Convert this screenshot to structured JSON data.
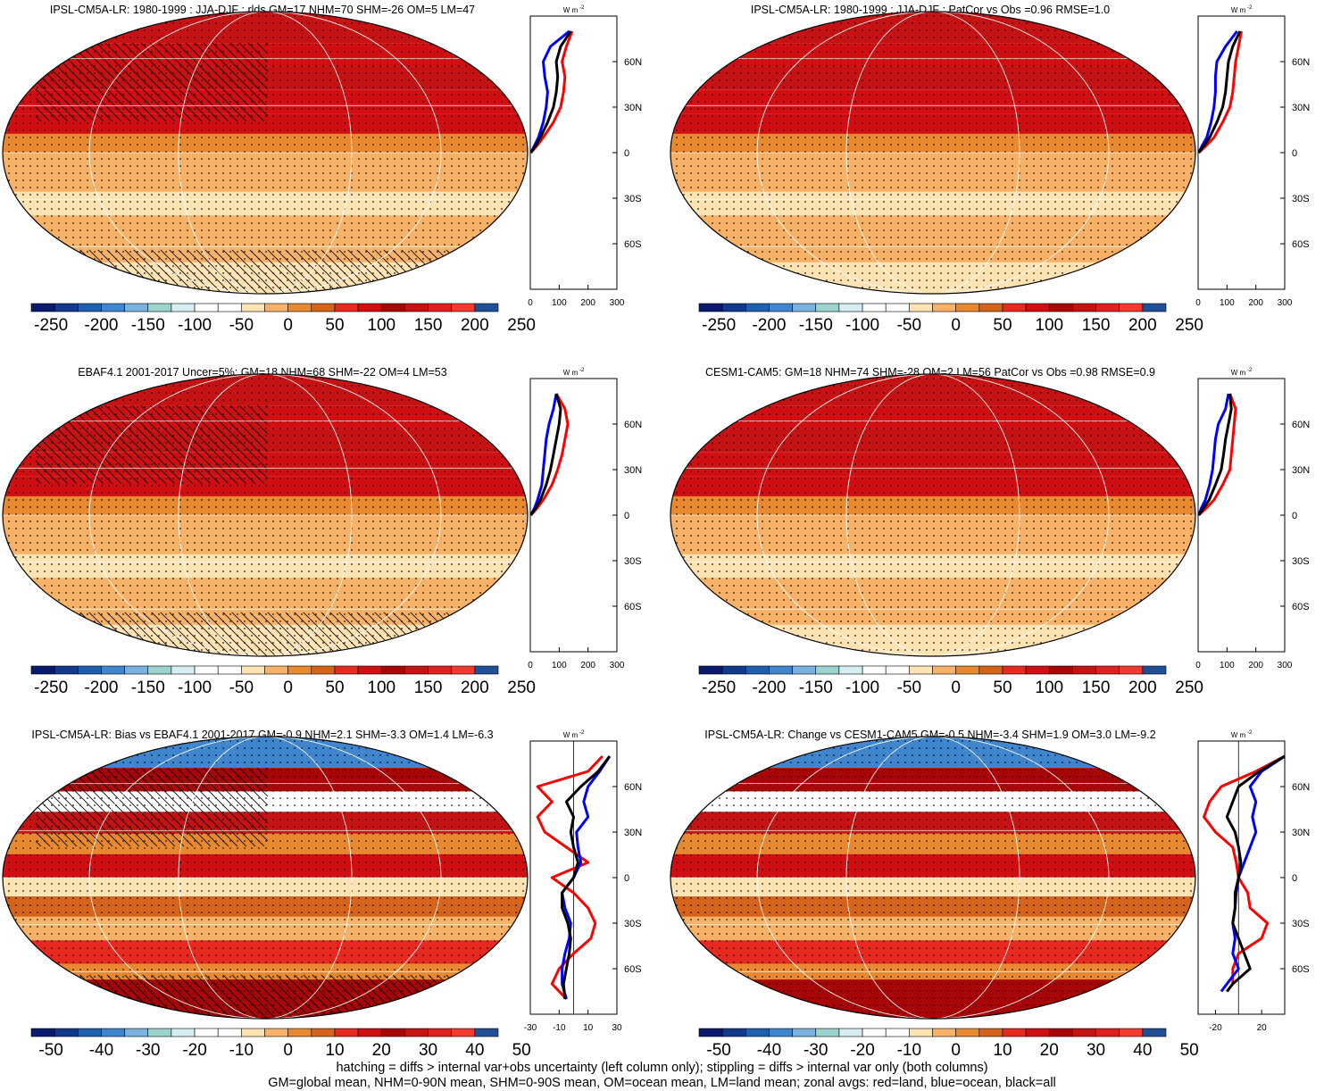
{
  "palette": {
    "map_colors": [
      "#0a1a6e",
      "#123a8c",
      "#1f5fb0",
      "#3f86cf",
      "#79b1df",
      "#9dd3cf",
      "#d6eef2",
      "#ffffff",
      "#ffffff",
      "#ffe3b3",
      "#f7b267",
      "#e8892f",
      "#d5641a",
      "#e8291f",
      "#d10f12",
      "#a80606",
      "#c61212",
      "#e0201e",
      "#f43a2e",
      "#1f4f94"
    ],
    "land": "#ff0000",
    "ocean": "#0000ff",
    "all": "#000000"
  },
  "chart_data": [
    {
      "type": "heatmap",
      "title": "IPSL-CM5A-LR: 1980-1999 : JJA-DJF : rlds GM=17 NHM=70 SHM=-26 OM=5 LM=47",
      "colorbar_labels": [
        "-250",
        "-200",
        "-150",
        "-100",
        "-50",
        "0",
        "50",
        "100",
        "150",
        "200",
        "250"
      ],
      "colorbar_range": [
        -250,
        250
      ],
      "hatching": true,
      "zonal": {
        "unit_label": "W m",
        "unit_exp": "-2",
        "xticks": [
          "0",
          "100",
          "200",
          "300"
        ],
        "xlim": [
          0,
          300
        ],
        "latlabels": [
          "60N",
          "30N",
          "0",
          "30S",
          "60S"
        ],
        "lat": [
          0,
          5,
          10,
          20,
          30,
          40,
          50,
          60,
          70,
          80
        ],
        "land": [
          2,
          25,
          45,
          80,
          105,
          115,
          120,
          110,
          125,
          145
        ],
        "ocean": [
          2,
          15,
          28,
          45,
          55,
          60,
          50,
          45,
          70,
          135
        ],
        "all": [
          2,
          20,
          35,
          60,
          80,
          90,
          95,
          90,
          105,
          140
        ]
      }
    },
    {
      "type": "heatmap",
      "title": "IPSL-CM5A-LR: 1980-1999 : JJA-DJF : PatCor vs Obs =0.96 RMSE=1.0",
      "colorbar_labels": [
        "-250",
        "-200",
        "-150",
        "-100",
        "-50",
        "0",
        "50",
        "100",
        "150",
        "200",
        "250"
      ],
      "colorbar_range": [
        -250,
        250
      ],
      "hatching": false,
      "zonal": {
        "unit_label": "W m",
        "unit_exp": "-2",
        "xticks": [
          "0",
          "100",
          "200",
          "300"
        ],
        "xlim": [
          0,
          300
        ],
        "latlabels": [
          "60N",
          "30N",
          "0",
          "30S",
          "60S"
        ],
        "lat": [
          0,
          5,
          10,
          20,
          30,
          40,
          50,
          60,
          70,
          80
        ],
        "land": [
          2,
          30,
          55,
          85,
          110,
          120,
          125,
          130,
          140,
          150
        ],
        "ocean": [
          2,
          15,
          30,
          45,
          55,
          60,
          60,
          65,
          95,
          135
        ],
        "all": [
          2,
          22,
          40,
          65,
          85,
          95,
          100,
          105,
          120,
          145
        ]
      }
    },
    {
      "type": "heatmap",
      "title": "EBAF4.1 2001-2017 Uncer=5%: GM=18 NHM=68 SHM=-22 OM=4 LM=53",
      "colorbar_labels": [
        "-250",
        "-200",
        "-150",
        "-100",
        "-50",
        "0",
        "50",
        "100",
        "150",
        "200",
        "250"
      ],
      "colorbar_range": [
        -250,
        250
      ],
      "hatching": true,
      "zonal": {
        "unit_label": "W m",
        "unit_exp": "-2",
        "xticks": [
          "0",
          "100",
          "200",
          "300"
        ],
        "xlim": [
          0,
          300
        ],
        "latlabels": [
          "60N",
          "30N",
          "0",
          "30S",
          "60S"
        ],
        "lat": [
          0,
          5,
          10,
          20,
          30,
          40,
          50,
          60,
          70,
          80
        ],
        "land": [
          2,
          25,
          45,
          75,
          95,
          110,
          120,
          130,
          120,
          90
        ],
        "ocean": [
          2,
          15,
          25,
          40,
          45,
          50,
          55,
          65,
          80,
          90
        ],
        "all": [
          2,
          20,
          35,
          55,
          70,
          80,
          90,
          100,
          105,
          90
        ]
      }
    },
    {
      "type": "heatmap",
      "title": "CESM1-CAM5: GM=18 NHM=74 SHM=-28 OM=2 LM=56 PatCor vs Obs =0.98 RMSE=0.9",
      "colorbar_labels": [
        "-250",
        "-200",
        "-150",
        "-100",
        "-50",
        "0",
        "50",
        "100",
        "150",
        "200",
        "250"
      ],
      "colorbar_range": [
        -250,
        250
      ],
      "hatching": false,
      "zonal": {
        "unit_label": "W m",
        "unit_exp": "-2",
        "xticks": [
          "0",
          "100",
          "200",
          "300"
        ],
        "xlim": [
          0,
          300
        ],
        "latlabels": [
          "60N",
          "30N",
          "0",
          "30S",
          "60S"
        ],
        "lat": [
          0,
          5,
          10,
          20,
          30,
          40,
          50,
          60,
          70,
          80
        ],
        "land": [
          2,
          30,
          55,
          85,
          110,
          115,
          120,
          125,
          130,
          110
        ],
        "ocean": [
          2,
          12,
          25,
          40,
          50,
          55,
          60,
          70,
          95,
          105
        ],
        "all": [
          2,
          20,
          38,
          60,
          80,
          88,
          95,
          105,
          115,
          110
        ]
      }
    },
    {
      "type": "heatmap",
      "title": "IPSL-CM5A-LR: Bias vs EBAF4.1 2001-2017 GM=-0.9 NHM=2.1 SHM=-3.3 OM=1.4 LM=-6.3",
      "colorbar_labels": [
        "-50",
        "-40",
        "-30",
        "-20",
        "-10",
        "0",
        "10",
        "20",
        "30",
        "40",
        "50"
      ],
      "colorbar_range": [
        -50,
        50
      ],
      "hatching": true,
      "zonal": {
        "unit_label": "W m",
        "unit_exp": "-2",
        "xticks": [
          "-30",
          "-10",
          "10",
          "30"
        ],
        "xlim": [
          -30,
          30
        ],
        "latlabels": [
          "60N",
          "30N",
          "0",
          "30S",
          "60S"
        ],
        "lat": [
          -80,
          -70,
          -60,
          -50,
          -40,
          -30,
          -20,
          -10,
          0,
          10,
          20,
          30,
          40,
          50,
          60,
          70,
          80
        ],
        "land": [
          -5,
          -15,
          -10,
          0,
          12,
          15,
          10,
          0,
          -15,
          10,
          -5,
          -20,
          -25,
          -15,
          -25,
          10,
          20
        ],
        "ocean": [
          -5,
          -8,
          -8,
          -6,
          -3,
          -2,
          -6,
          -8,
          0,
          5,
          3,
          2,
          10,
          7,
          10,
          18,
          25
        ],
        "all": [
          -6,
          -7,
          -5,
          -3,
          -2,
          -4,
          -8,
          -8,
          0,
          3,
          0,
          -2,
          0,
          -5,
          5,
          17,
          25
        ]
      }
    },
    {
      "type": "heatmap",
      "title": "IPSL-CM5A-LR: Change vs CESM1-CAM5 GM=-0.5 NHM=-3.4 SHM=1.9 OM=3.0 LM=-9.2",
      "colorbar_labels": [
        "-50",
        "-40",
        "-30",
        "-20",
        "-10",
        "0",
        "10",
        "20",
        "30",
        "40",
        "50"
      ],
      "colorbar_range": [
        -50,
        50
      ],
      "hatching": false,
      "zonal": {
        "unit_label": "W m",
        "unit_exp": "-2",
        "xticks": [
          "-20",
          "20"
        ],
        "xlim": [
          -35,
          40
        ],
        "latlabels": [
          "60N",
          "30N",
          "0",
          "30S",
          "60S"
        ],
        "lat": [
          -75,
          -70,
          -60,
          -50,
          -40,
          -30,
          -20,
          -10,
          0,
          10,
          20,
          30,
          40,
          50,
          60,
          70,
          80
        ],
        "land": [
          -10,
          -5,
          -5,
          0,
          20,
          25,
          10,
          8,
          0,
          -2,
          -5,
          -20,
          -30,
          -25,
          -15,
          15,
          40
        ],
        "ocean": [
          -15,
          -10,
          0,
          -5,
          -3,
          -5,
          -3,
          -2,
          0,
          5,
          10,
          15,
          12,
          15,
          10,
          20,
          40
        ],
        "all": [
          -10,
          -5,
          10,
          5,
          0,
          -5,
          -3,
          -3,
          0,
          2,
          0,
          -3,
          -10,
          -5,
          0,
          18,
          40
        ]
      }
    }
  ],
  "footer": {
    "line1": "hatching = diffs > internal var+obs uncertainty (left column only); stippling = diffs > internal var only (both columns)",
    "line2": "GM=global mean, NHM=0-90N mean, SHM=0-90S mean, OM=ocean mean, LM=land mean; zonal avgs: red=land, blue=ocean, black=all"
  }
}
